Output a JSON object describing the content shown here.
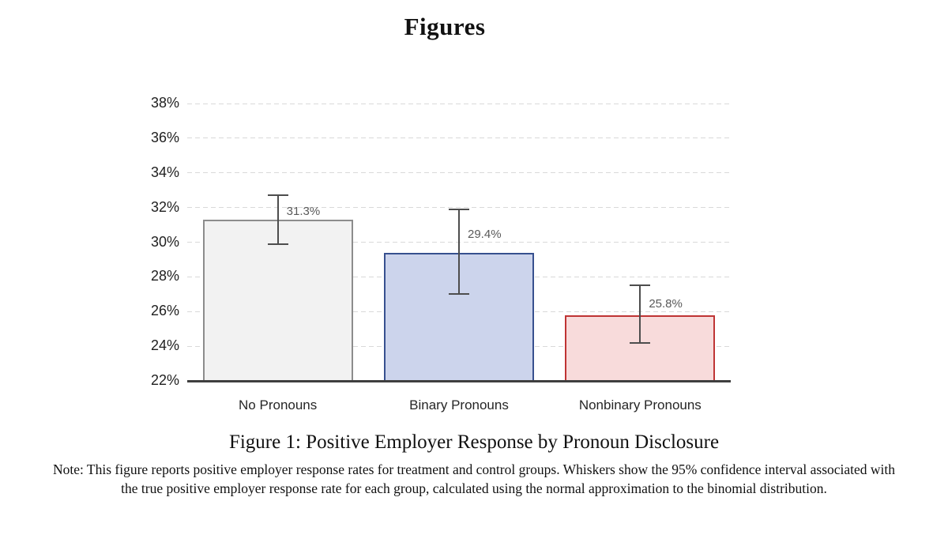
{
  "page": {
    "title": "Figures",
    "caption": "Figure 1: Positive Employer Response by Pronoun Disclosure",
    "note": "Note: This figure reports positive employer response rates for treatment and control groups. Whiskers show the 95% confidence interval associated with the true positive employer response rate for each group, calculated using the normal approximation to the binomial distribution."
  },
  "chart_data": {
    "type": "bar",
    "title": "Positive Employer Response by Pronoun Disclosure",
    "categories": [
      "No Pronouns",
      "Binary Pronouns",
      "Nonbinary Pronouns"
    ],
    "values": [
      31.3,
      29.4,
      25.8
    ],
    "data_labels": [
      "31.3%",
      "29.4%",
      "25.8%"
    ],
    "error_bars_95ci": [
      {
        "low": 29.9,
        "high": 32.7
      },
      {
        "low": 27.0,
        "high": 31.9
      },
      {
        "low": 24.2,
        "high": 27.5
      }
    ],
    "xlabel": "",
    "ylabel": "",
    "ylim": [
      22,
      38
    ],
    "ytick_step": 2,
    "ytick_labels": [
      "22%",
      "24%",
      "26%",
      "28%",
      "30%",
      "32%",
      "34%",
      "36%",
      "38%"
    ],
    "grid": "horizontal-dashed",
    "legend": "none",
    "bar_styles": [
      {
        "fill": "#f2f2f2",
        "border": "#8c8c8c"
      },
      {
        "fill": "#ccd4ec",
        "border": "#37508f"
      },
      {
        "fill": "#f8dbdb",
        "border": "#bf3434"
      }
    ],
    "whisker_color": "#4d4d4d",
    "gridline_color": "#d9d9d9",
    "axis_color": "#3f3f3f",
    "data_label_color": "#595959"
  }
}
